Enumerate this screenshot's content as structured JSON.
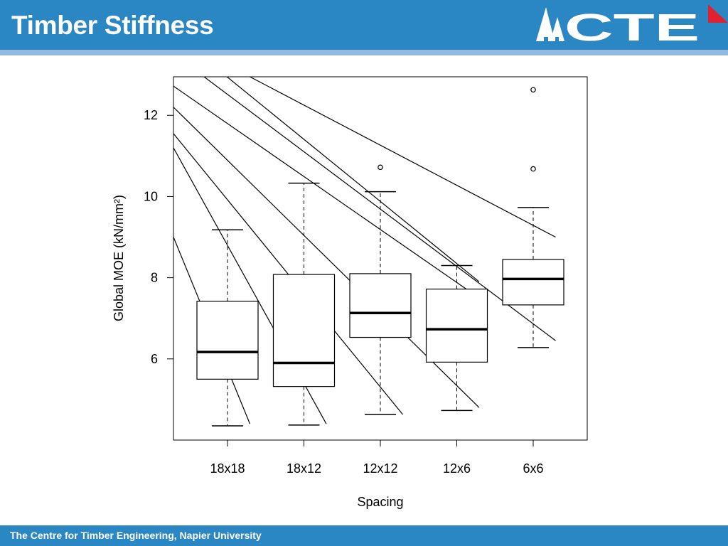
{
  "header": {
    "title": "Timber Stiffness",
    "logo_text": "CTE",
    "bar_color": "#2b87c3",
    "underline_color": "#93b9e3",
    "corner_mark_color": "#e0212e"
  },
  "footer": {
    "text": "The Centre for Timber Engineering, Napier University"
  },
  "chart_data": {
    "type": "boxplot",
    "title": "",
    "xlabel": "Spacing",
    "ylabel": "Global MOE (kN/mm²)",
    "categories": [
      "18x18",
      "18x12",
      "12x12",
      "12x6",
      "6x6"
    ],
    "yticks": [
      6,
      8,
      10,
      12
    ],
    "ylim": [
      4.0,
      12.95
    ],
    "boxes": [
      {
        "category": "18x18",
        "whisker_low": 4.35,
        "q1": 5.5,
        "median": 6.17,
        "q3": 7.42,
        "whisker_high": 9.18,
        "outliers": []
      },
      {
        "category": "18x12",
        "whisker_low": 4.37,
        "q1": 5.32,
        "median": 5.9,
        "q3": 8.08,
        "whisker_high": 10.33,
        "outliers": []
      },
      {
        "category": "12x12",
        "whisker_low": 4.63,
        "q1": 6.53,
        "median": 7.13,
        "q3": 8.1,
        "whisker_high": 10.12,
        "outliers": [
          10.72
        ]
      },
      {
        "category": "12x6",
        "whisker_low": 4.73,
        "q1": 5.92,
        "median": 6.73,
        "q3": 7.72,
        "whisker_high": 8.3,
        "outliers": []
      },
      {
        "category": "6x6",
        "whisker_low": 6.28,
        "q1": 7.33,
        "median": 7.97,
        "q3": 8.45,
        "whisker_high": 9.73,
        "outliers": [
          10.68,
          12.63
        ]
      }
    ],
    "overlay_lines": [
      {
        "from": [
          0.0,
          9.0
        ],
        "to": [
          1.0,
          4.4
        ]
      },
      {
        "from": [
          0.0,
          11.2
        ],
        "to": [
          2.0,
          4.4
        ]
      },
      {
        "from": [
          0.0,
          11.55
        ],
        "to": [
          3.0,
          4.63
        ]
      },
      {
        "from": [
          0.0,
          12.2
        ],
        "to": [
          4.0,
          4.8
        ]
      },
      {
        "from": [
          0.0,
          12.72
        ],
        "to": [
          4.0,
          7.5
        ]
      },
      {
        "from": [
          0.4,
          12.95
        ],
        "to": [
          5.0,
          6.45
        ]
      },
      {
        "from": [
          0.7,
          12.95
        ],
        "to": [
          4.0,
          7.9
        ]
      },
      {
        "from": [
          1.0,
          12.95
        ],
        "to": [
          5.0,
          9.0
        ]
      }
    ],
    "grid": false,
    "legend": "none"
  }
}
